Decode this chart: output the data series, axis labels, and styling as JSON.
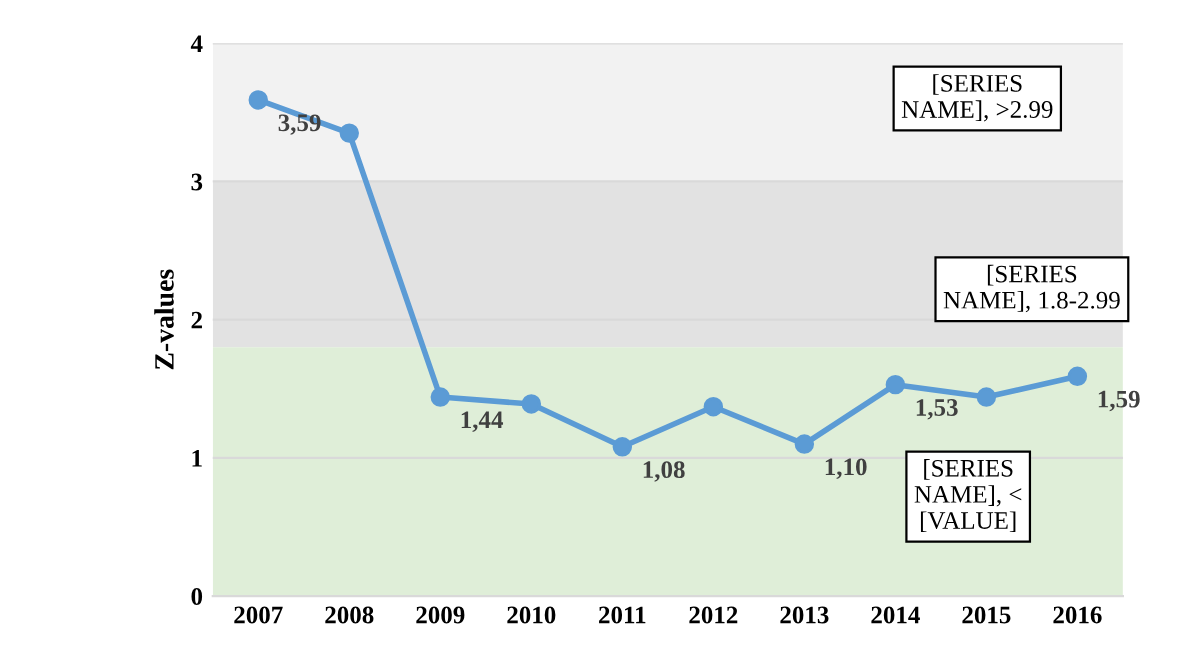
{
  "chart_data": {
    "type": "line",
    "ylabel": "Z-values",
    "categories": [
      "2007",
      "2008",
      "2009",
      "2010",
      "2011",
      "2012",
      "2013",
      "2014",
      "2015",
      "2016"
    ],
    "series": [
      {
        "color": "#5b9bd5",
        "values": [
          3.59,
          3.35,
          1.44,
          1.39,
          1.08,
          1.37,
          1.1,
          1.53,
          1.44,
          1.59
        ],
        "value_labels": [
          "3,59",
          null,
          "1,44",
          null,
          "1,08",
          null,
          "1,10",
          "1,53",
          null,
          "1,59"
        ]
      }
    ],
    "ylim": [
      0,
      4
    ],
    "yticks": [
      0,
      1,
      2,
      3,
      4
    ],
    "grid": "y",
    "marker": "circle",
    "line_style": "solid",
    "bands": [
      {
        "axis": "y",
        "from": 3,
        "to": 4,
        "label": "[SERIES NAME], >2.99",
        "color": "#f2f2f2"
      },
      {
        "axis": "y",
        "from": 1.8,
        "to": 3,
        "label": "[SERIES NAME], 1.8-2.99",
        "color": "#e2e2e2"
      },
      {
        "axis": "y",
        "from": 0,
        "to": 1.8,
        "label": "[SERIES NAME], < [VALUE]",
        "color": "#dfeed8"
      }
    ]
  }
}
